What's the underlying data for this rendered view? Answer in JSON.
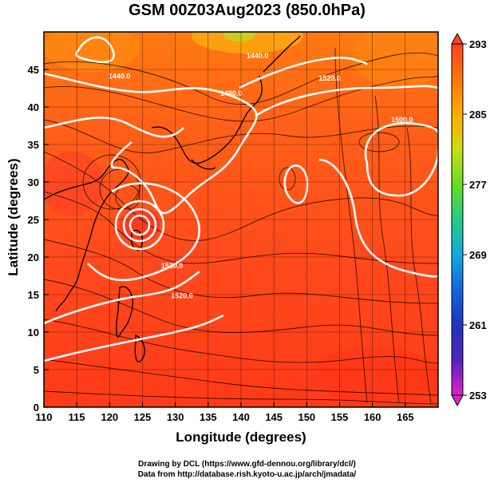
{
  "figure": {
    "title": "GSM 00Z03Aug2023 (850.0hPa)",
    "xlabel": "Longitude (degrees)",
    "ylabel": "Latitude  (degrees)",
    "credit_line1": "Drawing by DCL (https://www.gfd-dennou.org/library/dcl/)",
    "credit_line2": "Data from http://database.rish.kyoto-u.ac.jp/arch/jmadata/"
  },
  "axes": {
    "x_range": [
      110,
      170
    ],
    "y_range": [
      0,
      50
    ],
    "x_ticks": [
      110,
      115,
      120,
      125,
      130,
      135,
      140,
      145,
      150,
      155,
      160,
      165
    ],
    "y_ticks": [
      0,
      5,
      10,
      15,
      20,
      25,
      30,
      35,
      40,
      45
    ]
  },
  "colorbar": {
    "range": [
      253,
      293
    ],
    "tick_labels": [
      "293",
      "285",
      "277",
      "269",
      "261",
      "253"
    ],
    "colors": [
      "#dd22cc",
      "#2222bb",
      "#1155dd",
      "#11aadd",
      "#22cc88",
      "#66dd22",
      "#ccdd11",
      "#ffaa00",
      "#ff7700",
      "#ff4422"
    ]
  },
  "contour_labels": [
    {
      "text": "1440.0",
      "lon": 121.5,
      "lat": 43.8
    },
    {
      "text": "1440.0",
      "lon": 142.5,
      "lat": 46.5
    },
    {
      "text": "1480.0",
      "lon": 138.5,
      "lat": 41.5
    },
    {
      "text": "1520.0",
      "lon": 153.5,
      "lat": 43.5
    },
    {
      "text": "1500.0",
      "lon": 164.5,
      "lat": 38.0
    },
    {
      "text": "1520.0",
      "lon": 129.5,
      "lat": 18.5
    },
    {
      "text": "1520.0",
      "lon": 131.0,
      "lat": 14.5
    }
  ]
}
